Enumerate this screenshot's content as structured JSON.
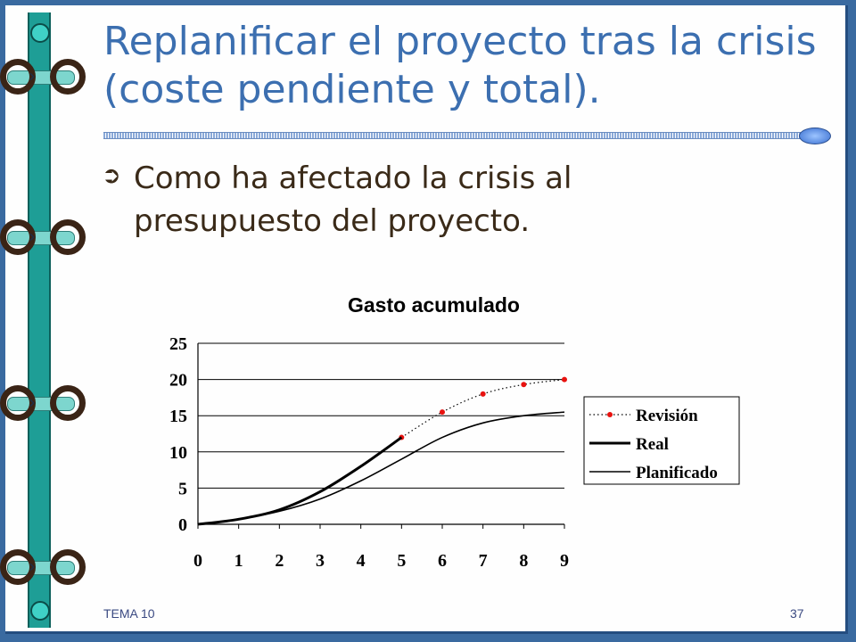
{
  "slide": {
    "title": "Replanificar el proyecto tras la crisis (coste pendiente y total).",
    "bullet_icon": "arrow-right-icon",
    "bullet": "Como ha afectado la crisis al presupuesto del proyecto.",
    "footer_left": "TEMA 10",
    "footer_right": "37"
  },
  "chart_data": {
    "type": "line",
    "title": "Gasto acumulado",
    "xlabel": "",
    "ylabel": "",
    "x": [
      0,
      1,
      2,
      3,
      4,
      5,
      6,
      7,
      8,
      9
    ],
    "ylim": [
      0,
      25
    ],
    "yticks": [
      0,
      5,
      10,
      15,
      20,
      25
    ],
    "grid": "horizontal",
    "legend_position": "right",
    "series": [
      {
        "name": "Revisión",
        "style": "dotted-markers",
        "color": "#e8120f",
        "x": [
          5,
          6,
          7,
          8,
          9
        ],
        "values": [
          12,
          15.5,
          18,
          19.3,
          20
        ]
      },
      {
        "name": "Real",
        "style": "thick",
        "color": "#000000",
        "x": [
          0,
          1,
          2,
          3,
          4,
          5
        ],
        "values": [
          0,
          0.7,
          2,
          4.5,
          8,
          12
        ]
      },
      {
        "name": "Planificado",
        "style": "thin",
        "color": "#000000",
        "x": [
          0,
          1,
          2,
          3,
          4,
          5,
          6,
          7,
          8,
          9
        ],
        "values": [
          0,
          0.7,
          1.8,
          3.5,
          6,
          9,
          12,
          14,
          15,
          15.5
        ]
      }
    ]
  }
}
